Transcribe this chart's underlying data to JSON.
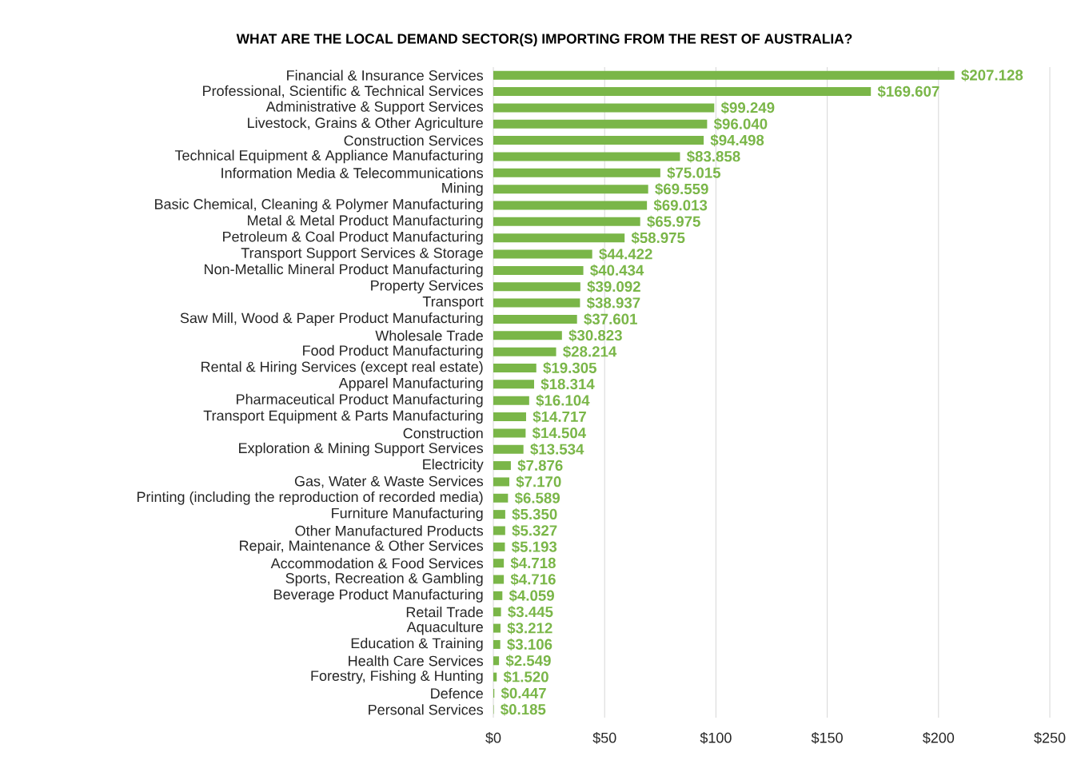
{
  "chart_data": {
    "type": "bar",
    "orientation": "horizontal",
    "title": "WHAT ARE THE LOCAL DEMAND SECTOR(S) IMPORTING FROM THE REST OF AUSTRALIA?",
    "categories": [
      "Financial & Insurance Services",
      "Professional, Scientific & Technical Services",
      "Administrative & Support Services",
      "Livestock, Grains & Other Agriculture",
      "Construction Services",
      "Technical Equipment & Appliance Manufacturing",
      "Information Media & Telecommunications",
      "Mining",
      "Basic Chemical, Cleaning & Polymer Manufacturing",
      "Metal & Metal Product Manufacturing",
      "Petroleum & Coal Product Manufacturing",
      "Transport Support Services & Storage",
      "Non-Metallic Mineral Product Manufacturing",
      "Property Services",
      "Transport",
      "Saw Mill, Wood & Paper Product Manufacturing",
      "Wholesale Trade",
      "Food Product Manufacturing",
      "Rental & Hiring Services (except real estate)",
      "Apparel Manufacturing",
      "Pharmaceutical Product Manufacturing",
      "Transport Equipment & Parts Manufacturing",
      "Construction",
      "Exploration & Mining Support Services",
      "Electricity",
      "Gas, Water & Waste Services",
      "Printing (including the reproduction of recorded media)",
      "Furniture Manufacturing",
      "Other Manufactured Products",
      "Repair, Maintenance & Other Services",
      "Accommodation & Food Services",
      "Sports, Recreation & Gambling",
      "Beverage Product Manufacturing",
      "Retail Trade",
      "Aquaculture",
      "Education & Training",
      "Health Care Services",
      "Forestry, Fishing & Hunting",
      "Defence",
      "Personal Services"
    ],
    "values": [
      207.128,
      169.607,
      99.249,
      96.04,
      94.498,
      83.858,
      75.015,
      69.559,
      69.013,
      65.975,
      58.975,
      44.422,
      40.434,
      39.092,
      38.937,
      37.601,
      30.823,
      28.214,
      19.305,
      18.314,
      16.104,
      14.717,
      14.504,
      13.534,
      7.876,
      7.17,
      6.589,
      5.35,
      5.327,
      5.193,
      4.718,
      4.716,
      4.059,
      3.445,
      3.212,
      3.106,
      2.549,
      1.52,
      0.447,
      0.185
    ],
    "value_labels": [
      "$207.128",
      "$169.607",
      "$99.249",
      "$96.040",
      "$94.498",
      "$83.858",
      "$75.015",
      "$69.559",
      "$69.013",
      "$65.975",
      "$58.975",
      "$44.422",
      "$40.434",
      "$39.092",
      "$38.937",
      "$37.601",
      "$30.823",
      "$28.214",
      "$19.305",
      "$18.314",
      "$16.104",
      "$14.717",
      "$14.504",
      "$13.534",
      "$7.876",
      "$7.170",
      "$6.589",
      "$5.350",
      "$5.327",
      "$5.193",
      "$4.718",
      "$4.716",
      "$4.059",
      "$3.445",
      "$3.212",
      "$3.106",
      "$2.549",
      "$1.520",
      "$0.447",
      "$0.185"
    ],
    "color": "#7ab648",
    "xlim": [
      0,
      250
    ],
    "xticks": [
      {
        "value": 0,
        "label": "$0"
      },
      {
        "value": 50,
        "label": "$50"
      },
      {
        "value": 100,
        "label": "$100"
      },
      {
        "value": 150,
        "label": "$150"
      },
      {
        "value": 200,
        "label": "$200"
      },
      {
        "value": 250,
        "label": "$250"
      }
    ],
    "grid": "x"
  }
}
